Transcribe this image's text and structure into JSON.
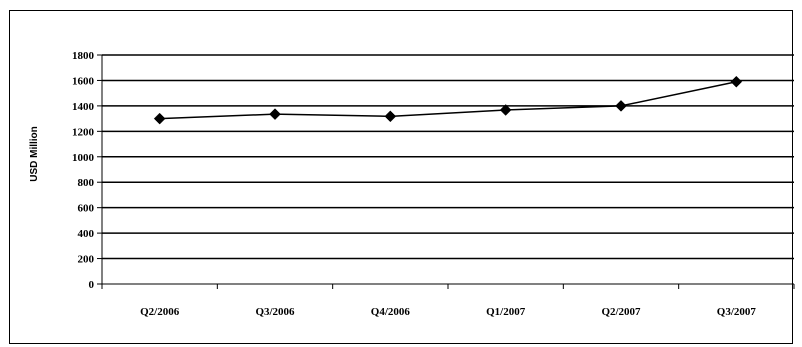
{
  "chart_data": {
    "type": "line",
    "title": "",
    "xlabel": "",
    "ylabel": "USD Million",
    "categories": [
      "Q2/2006",
      "Q3/2006",
      "Q4/2006",
      "Q1/2007",
      "Q2/2007",
      "Q3/2007"
    ],
    "series": [
      {
        "values": [
          1300,
          1335,
          1318,
          1368,
          1400,
          1590
        ],
        "color": "#000000",
        "marker": "diamond"
      }
    ],
    "ylim": [
      0,
      1800
    ],
    "yticks": [
      0,
      200,
      400,
      600,
      800,
      1000,
      1200,
      1400,
      1600,
      1800
    ],
    "grid": "horizontal",
    "legend": "none"
  }
}
